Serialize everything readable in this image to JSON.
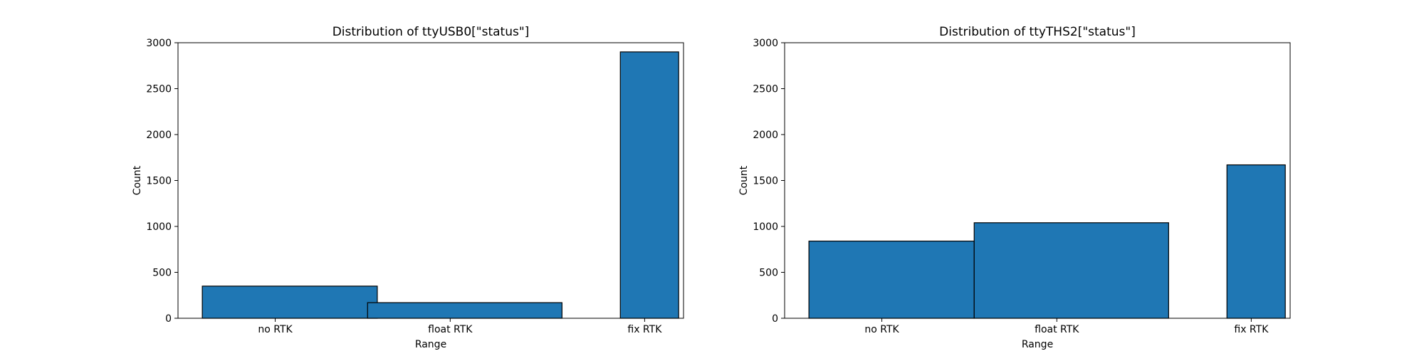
{
  "figure": {
    "colors": {
      "bar_fill": "#1f77b4",
      "bar_edge": "#000000",
      "axes": "#000000",
      "background": "#ffffff"
    }
  },
  "chart_data": [
    {
      "type": "bar",
      "title": "Distribution of ttyUSB0[\"status\"]",
      "xlabel": "Range",
      "ylabel": "Count",
      "ylim": [
        0,
        3000
      ],
      "yticks": [
        0,
        500,
        1000,
        1500,
        2000,
        2500,
        3000
      ],
      "xlim": [
        0,
        2.6
      ],
      "xtick_positions": [
        0.5,
        1.4,
        2.4
      ],
      "categories": [
        "no RTK",
        "float RTK",
        "fix RTK"
      ],
      "grid": false,
      "bars": [
        {
          "label": "no RTK",
          "x0": 0.125,
          "x1": 1.025,
          "value": 350
        },
        {
          "label": "float RTK",
          "x0": 0.975,
          "x1": 1.975,
          "value": 170
        },
        {
          "label": "fix RTK",
          "x0": 2.275,
          "x1": 2.575,
          "value": 2900
        }
      ]
    },
    {
      "type": "bar",
      "title": "Distribution of ttyTHS2[\"status\"]",
      "xlabel": "Range",
      "ylabel": "Count",
      "ylim": [
        0,
        3000
      ],
      "yticks": [
        0,
        500,
        1000,
        1500,
        2000,
        2500,
        3000
      ],
      "xlim": [
        0,
        2.6
      ],
      "xtick_positions": [
        0.5,
        1.4,
        2.4
      ],
      "categories": [
        "no RTK",
        "float RTK",
        "fix RTK"
      ],
      "grid": false,
      "bars": [
        {
          "label": "no RTK",
          "x0": 0.125,
          "x1": 0.975,
          "value": 840
        },
        {
          "label": "float RTK",
          "x0": 0.975,
          "x1": 1.975,
          "value": 1040
        },
        {
          "label": "fix RTK",
          "x0": 2.275,
          "x1": 2.575,
          "value": 1670
        }
      ]
    }
  ]
}
